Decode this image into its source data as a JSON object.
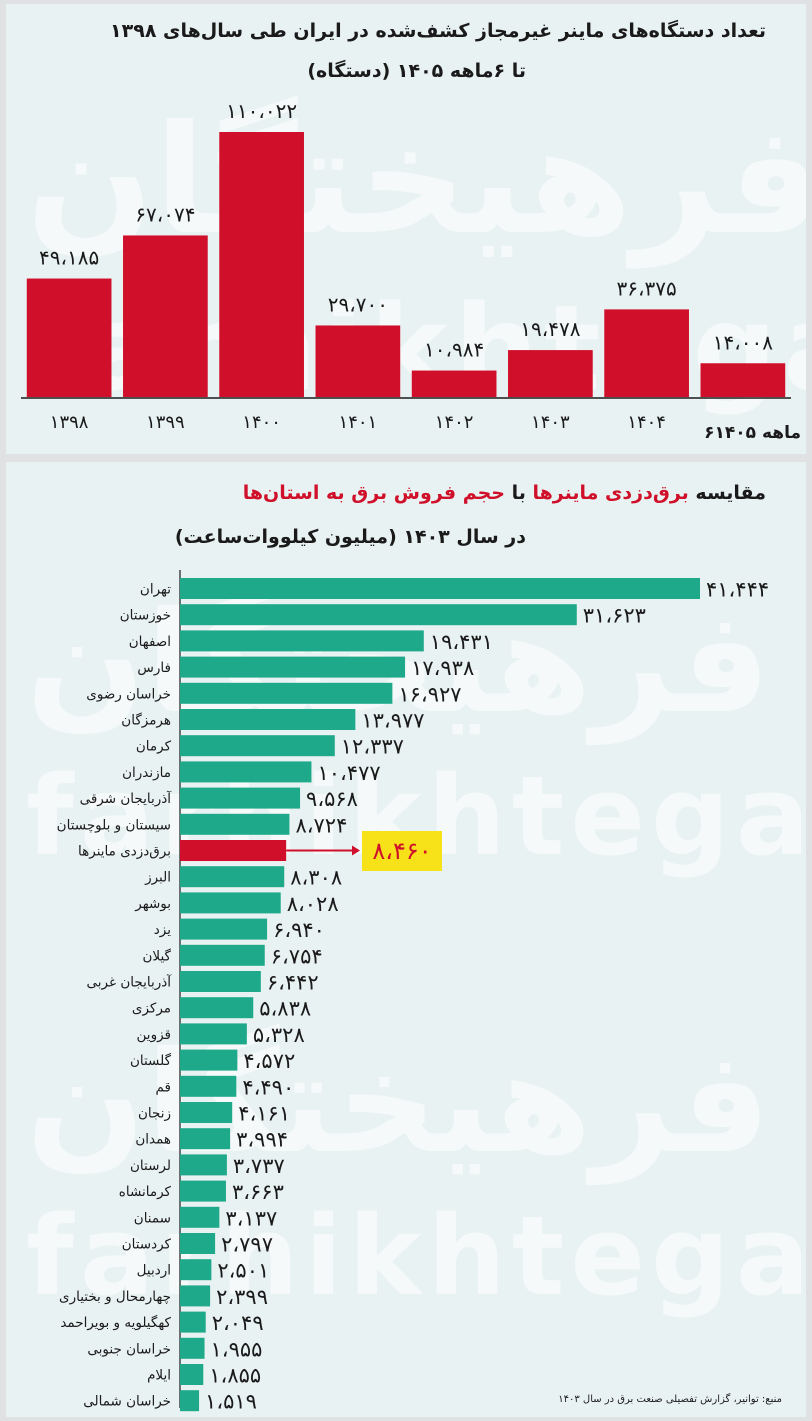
{
  "watermark": {
    "fa": "فرهیختگان",
    "en": "farhikhtegan"
  },
  "chart_data": [
    {
      "type": "bar",
      "title": "تعداد دستگاه‌های ماینر غیرمجاز کشف‌شده در ایران طی سال‌های ۱۳۹۸",
      "subtitle": "تا ۶ماهه ۱۴۰۵ (دستگاه)",
      "categories": [
        "۱۳۹۸",
        "۱۳۹۹",
        "۱۴۰۰",
        "۱۴۰۱",
        "۱۴۰۲",
        "۱۴۰۳",
        "۱۴۰۴",
        "۶ماهه ۱۴۰۵"
      ],
      "values": [
        49185,
        67074,
        110022,
        29700,
        10984,
        19478,
        36375,
        14008
      ],
      "value_labels": [
        "۴۹،۱۸۵",
        "۶۷،۰۷۴",
        "۱۱۰،۰۲۲",
        "۲۹،۷۰۰",
        "۱۰،۹۸۴",
        "۱۹،۴۷۸",
        "۳۶،۳۷۵",
        "۱۴،۰۰۸"
      ],
      "bar_color": "#d0102a",
      "ylim": [
        0,
        110022
      ],
      "grid": false
    },
    {
      "type": "bar",
      "orientation": "horizontal",
      "title_parts": [
        "مقایسه ",
        "برق‌دزدی ماینرها",
        " با ",
        "حجم فروش برق به استان‌ها"
      ],
      "subtitle": "در سال ۱۴۰۳ (میلیون کیلووات‌ساعت)",
      "categories": [
        "تهران",
        "خوزستان",
        "اصفهان",
        "فارس",
        "خراسان رضوی",
        "هرمزگان",
        "کرمان",
        "مازندران",
        "آذربایجان شرقی",
        "سیستان و بلوچستان",
        "برق‌دزدی ماینرها",
        "البرز",
        "بوشهر",
        "یزد",
        "گیلان",
        "آذربایجان غربی",
        "مرکزی",
        "قزوین",
        "گلستان",
        "قم",
        "زنجان",
        "همدان",
        "لرستان",
        "کرمانشاه",
        "سمنان",
        "کردستان",
        "اردبیل",
        "چهارمحال و بختیاری",
        "کهگیلویه و بویراحمد",
        "خراسان جنوبی",
        "ایلام",
        "خراسان شمالی"
      ],
      "values": [
        41444,
        31623,
        19431,
        17938,
        16927,
        13977,
        12337,
        10477,
        9568,
        8724,
        8460,
        8308,
        8028,
        6940,
        6754,
        6442,
        5838,
        5328,
        4572,
        4490,
        4161,
        3994,
        3737,
        3663,
        3137,
        2797,
        2501,
        2399,
        2049,
        1955,
        1855,
        1519
      ],
      "value_labels": [
        "۴۱،۴۴۴",
        "۳۱،۶۲۳",
        "۱۹،۴۳۱",
        "۱۷،۹۳۸",
        "۱۶،۹۲۷",
        "۱۳،۹۷۷",
        "۱۲،۳۳۷",
        "۱۰،۴۷۷",
        "۹،۵۶۸",
        "۸،۷۲۴",
        "۸،۴۶۰",
        "۸،۳۰۸",
        "۸،۰۲۸",
        "۶،۹۴۰",
        "۶،۷۵۴",
        "۶،۴۴۲",
        "۵،۸۳۸",
        "۵،۳۲۸",
        "۴،۵۷۲",
        "۴،۴۹۰",
        "۴،۱۶۱",
        "۳،۹۹۴",
        "۳،۷۳۷",
        "۳،۶۶۳",
        "۳،۱۳۷",
        "۲،۷۹۷",
        "۲،۵۰۱",
        "۲،۳۹۹",
        "۲،۰۴۹",
        "۱،۹۵۵",
        "۱،۸۵۵",
        "۱،۵۱۹"
      ],
      "highlight_index": 10,
      "bar_color": "#1eaa8a",
      "highlight_color": "#d0102a",
      "highlight_label_bg": "#f7e21a",
      "source": "منبع: توانیر، گزارش تفصیلی صنعت برق در سال ۱۴۰۳"
    }
  ]
}
